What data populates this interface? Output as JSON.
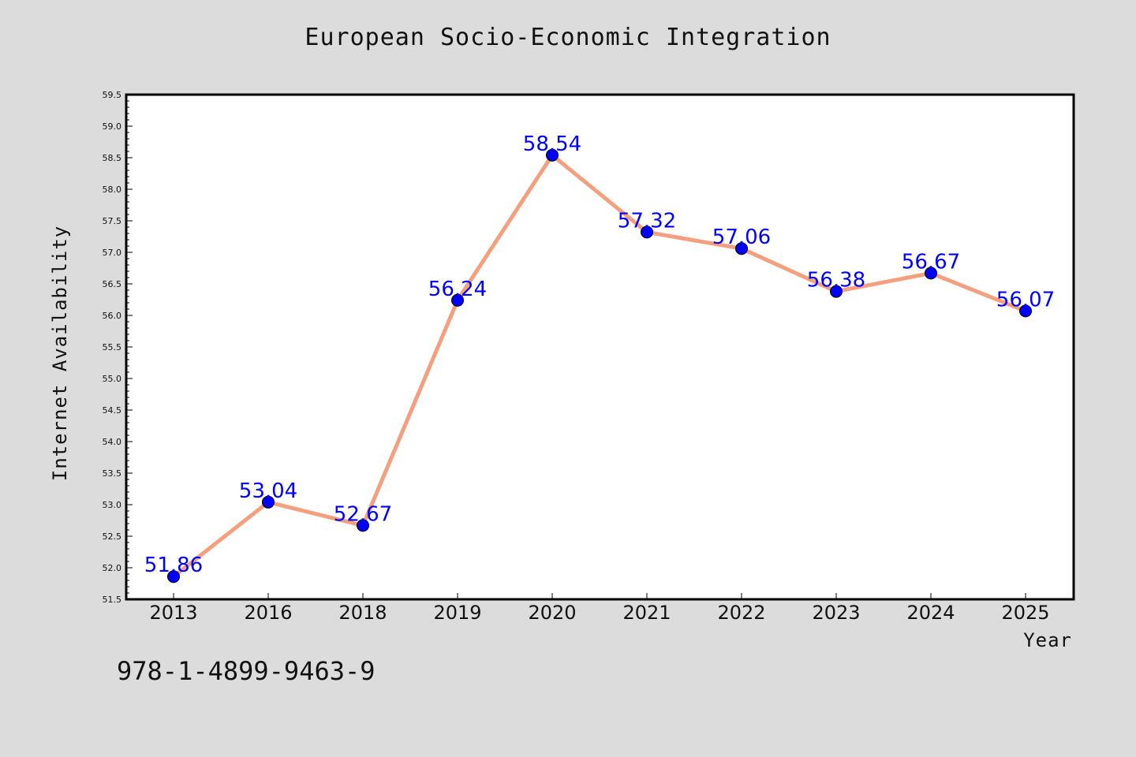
{
  "page": {
    "footer_code": "978-1-4899-9463-9"
  },
  "colors": {
    "background": "#dcdcdc",
    "plot_background": "#ffffff",
    "line": "#f4a07f",
    "marker": "#0000ff",
    "data_label": "#0000ff"
  },
  "chart_data": {
    "type": "line",
    "title": "European Socio-Economic Integration",
    "xlabel": "Year",
    "ylabel": "Internet Availability",
    "categories": [
      "2013",
      "2016",
      "2018",
      "2019",
      "2020",
      "2021",
      "2022",
      "2023",
      "2024",
      "2025"
    ],
    "series": [
      {
        "values": [
          51.86,
          53.04,
          52.67,
          56.24,
          58.54,
          57.32,
          57.06,
          56.38,
          56.67,
          56.07
        ]
      }
    ],
    "data_labels": [
      "51.86",
      "53.04",
      "52.67",
      "56.24",
      "58.54",
      "57.32",
      "57.06",
      "56.38",
      "56.67",
      "56.07"
    ],
    "ylim": [
      51.5,
      59.5
    ],
    "yticks": [
      "51.5",
      "52.0",
      "52.5",
      "53.0",
      "53.5",
      "54.0",
      "54.5",
      "55.0",
      "55.5",
      "56.0",
      "56.5",
      "57.0",
      "57.5",
      "58.0",
      "58.5",
      "59.0",
      "59.5"
    ],
    "grid": false,
    "legend": "none"
  }
}
